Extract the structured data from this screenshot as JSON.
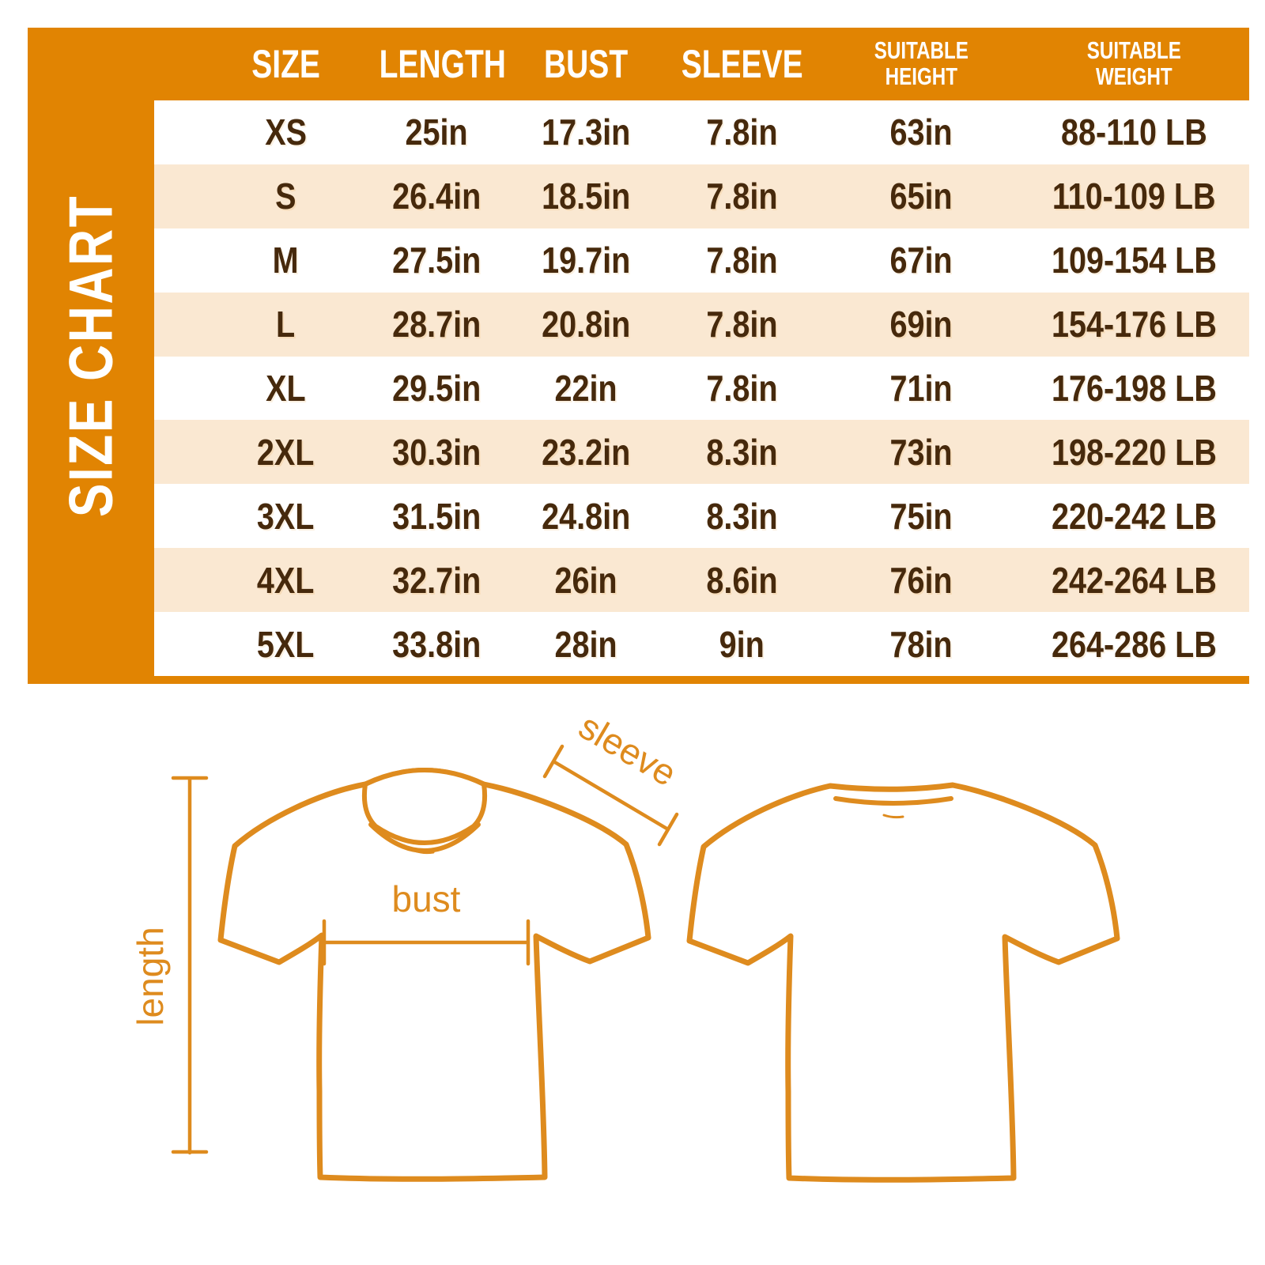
{
  "table": {
    "side_title": "SIZE CHART",
    "columns_display": [
      "SIZE",
      "LENGTH",
      "BUST",
      "SLEEVE",
      "SUITABLE\nHEIGHT",
      "SUITABLE\nWEIGHT"
    ]
  },
  "chart_data": {
    "type": "table",
    "title": "SIZE CHART",
    "columns": [
      "SIZE",
      "LENGTH",
      "BUST",
      "SLEEVE",
      "SUITABLE HEIGHT",
      "SUITABLE WEIGHT"
    ],
    "rows": [
      [
        "XS",
        "25in",
        "17.3in",
        "7.8in",
        "63in",
        "88-110 LB"
      ],
      [
        "S",
        "26.4in",
        "18.5in",
        "7.8in",
        "65in",
        "110-109 LB"
      ],
      [
        "M",
        "27.5in",
        "19.7in",
        "7.8in",
        "67in",
        "109-154 LB"
      ],
      [
        "L",
        "28.7in",
        "20.8in",
        "7.8in",
        "69in",
        "154-176 LB"
      ],
      [
        "XL",
        "29.5in",
        "22in",
        "7.8in",
        "71in",
        "176-198 LB"
      ],
      [
        "2XL",
        "30.3in",
        "23.2in",
        "8.3in",
        "73in",
        "198-220 LB"
      ],
      [
        "3XL",
        "31.5in",
        "24.8in",
        "8.3in",
        "75in",
        "220-242 LB"
      ],
      [
        "4XL",
        "32.7in",
        "26in",
        "8.6in",
        "76in",
        "242-264 LB"
      ],
      [
        "5XL",
        "33.8in",
        "28in",
        "9in",
        "78in",
        "264-286 LB"
      ]
    ],
    "layout": {
      "row_stripes": [
        "white",
        "peach"
      ],
      "header_background": "#E18402"
    }
  },
  "diagram": {
    "length_label": "length",
    "bust_label": "bust",
    "sleeve_label": "sleeve"
  },
  "colors": {
    "orange": "#E18402",
    "peach": "#FAE8D2",
    "text_brown": "#46290C",
    "header_text": "#FFFFFF",
    "diagram_orange": "#DE8B1E",
    "row_white": "#FFFFFF"
  }
}
